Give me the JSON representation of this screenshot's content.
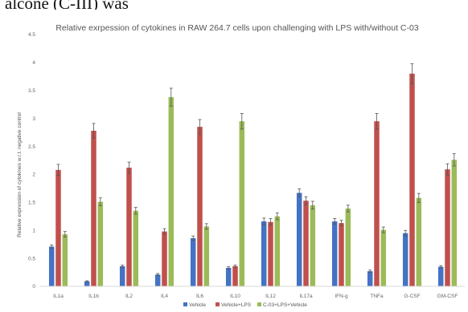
{
  "header_fragment": "alcone   (C-III)   was",
  "chart_data": {
    "type": "bar",
    "title": "Relative exrpession of cytokines in RAW 264.7 cells upon challenging with LPS with/without C-03",
    "xlabel": "",
    "ylabel": "Relative expression of cytokines w.r.t. negative control",
    "ylim": [
      0,
      4.5
    ],
    "yticks": [
      "0",
      "0.5",
      "1",
      "1.5",
      "2",
      "2.5",
      "3",
      "3.5",
      "4",
      "4.5"
    ],
    "grid": false,
    "legend_position": "bottom",
    "categories": [
      "IL1a",
      "IL1b",
      "IL2",
      "IL4",
      "IL6",
      "IL10",
      "IL12",
      "IL17a",
      "IFN-g",
      "TNFa",
      "G-CSF",
      "GM-CSF"
    ],
    "series": [
      {
        "name": "Vehicle",
        "color": "#4472c4",
        "values": [
          0.71,
          0.09,
          0.36,
          0.21,
          0.86,
          0.33,
          1.16,
          1.67,
          1.16,
          0.27,
          0.95,
          0.35
        ],
        "errors": [
          0.03,
          0.01,
          0.02,
          0.02,
          0.04,
          0.02,
          0.06,
          0.07,
          0.05,
          0.02,
          0.05,
          0.02
        ]
      },
      {
        "name": "Vehicle+LPS",
        "color": "#c0504d",
        "values": [
          2.08,
          2.78,
          2.12,
          0.98,
          2.85,
          0.36,
          1.15,
          1.53,
          1.13,
          2.95,
          3.8,
          2.09
        ],
        "errors": [
          0.1,
          0.13,
          0.1,
          0.05,
          0.13,
          0.02,
          0.06,
          0.07,
          0.05,
          0.14,
          0.18,
          0.1
        ]
      },
      {
        "name": "C-03+LPS+Vehicle",
        "color": "#9bbb59",
        "values": [
          0.93,
          1.51,
          1.35,
          3.38,
          1.07,
          2.95,
          1.25,
          1.45,
          1.39,
          1.01,
          1.58,
          2.26
        ],
        "errors": [
          0.05,
          0.07,
          0.06,
          0.16,
          0.05,
          0.14,
          0.06,
          0.07,
          0.06,
          0.05,
          0.08,
          0.11
        ]
      }
    ]
  }
}
